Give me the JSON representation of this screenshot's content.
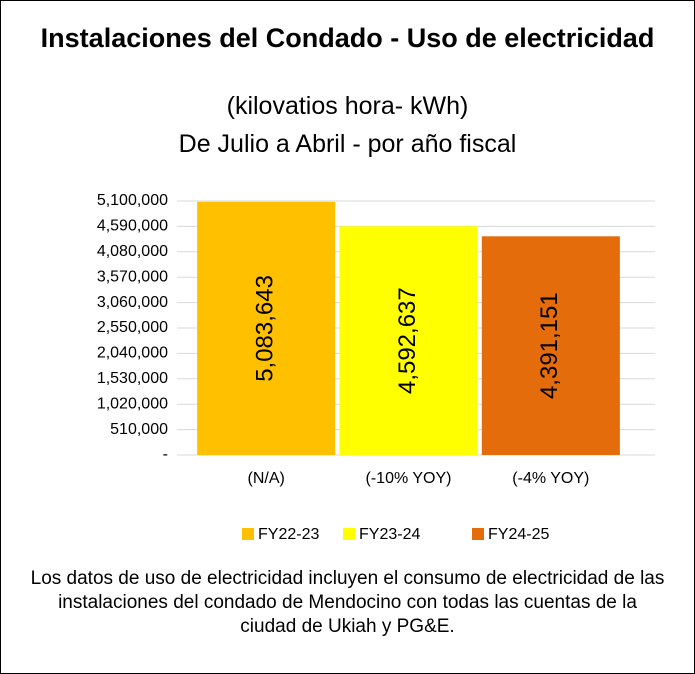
{
  "chart_data": {
    "type": "bar",
    "title": "Instalaciones del Condado - Uso de electricidad",
    "subtitle": [
      "(kilovatios hora- kWh)",
      "De Julio a Abril - por año fiscal"
    ],
    "categories": [
      "(N/A)",
      "(-10% YOY)",
      "(-4% YOY)"
    ],
    "series": [
      {
        "name": "FY22-23",
        "color": "#ffc000",
        "values": [
          5083643,
          null,
          null
        ],
        "value_labels": [
          "5,083,643",
          null,
          null
        ]
      },
      {
        "name": "FY23-24",
        "color": "#ffff00",
        "values": [
          null,
          4592637,
          null
        ],
        "value_labels": [
          null,
          "4,592,637",
          null
        ]
      },
      {
        "name": "FY24-25",
        "color": "#e46c0a",
        "values": [
          null,
          null,
          4391151
        ],
        "value_labels": [
          null,
          null,
          "4,391,151"
        ]
      }
    ],
    "ylim": [
      0,
      5100000
    ],
    "yticks": [
      {
        "value": 0,
        "label": "-"
      },
      {
        "value": 510000,
        "label": "510,000"
      },
      {
        "value": 1020000,
        "label": "1,020,000"
      },
      {
        "value": 1530000,
        "label": "1,530,000"
      },
      {
        "value": 2040000,
        "label": "2,040,000"
      },
      {
        "value": 2550000,
        "label": "2,550,000"
      },
      {
        "value": 3060000,
        "label": "3,060,000"
      },
      {
        "value": 3570000,
        "label": "3,570,000"
      },
      {
        "value": 4080000,
        "label": "4,080,000"
      },
      {
        "value": 4590000,
        "label": "4,590,000"
      },
      {
        "value": 5100000,
        "label": "5,100,000"
      }
    ],
    "grid": true,
    "legend": "bottom",
    "note": "Los datos de uso de electricidad incluyen el consumo de electricidad de las instalaciones del condado de Mendocino con todas las cuentas de la ciudad de Ukiah y PG&E."
  }
}
